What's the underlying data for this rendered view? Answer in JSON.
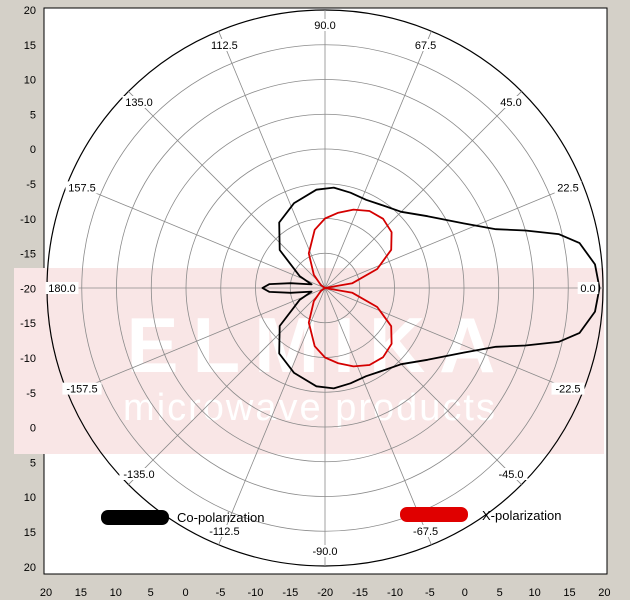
{
  "chart_data": {
    "type": "polar-line",
    "radial_unit": "dB",
    "radial_range": [
      -20,
      20
    ],
    "angle_labels": [
      "0.0",
      "22.5",
      "45.0",
      "67.5",
      "90.0",
      "112.5",
      "135.0",
      "157.5",
      "180.0",
      "-157.5",
      "-135.0",
      "-112.5",
      "-90.0",
      "-67.5",
      "-45.0",
      "-22.5"
    ],
    "x_ticks": [
      "20",
      "15",
      "10",
      "5",
      "0",
      "-5",
      "-10",
      "-15",
      "-20",
      "-15",
      "-10",
      "-5",
      "0",
      "5",
      "10",
      "15",
      "20"
    ],
    "y_ticks": [
      "20",
      "15",
      "10",
      "5",
      "0",
      "-5",
      "-10",
      "-15",
      "-20",
      "-15",
      "-10",
      "-5",
      "0",
      "5",
      "10",
      "15",
      "20"
    ],
    "grid": true,
    "legend_position": "bottom",
    "watermark": {
      "brand": "ELMIKA",
      "tagline": "microwave products"
    },
    "series": [
      {
        "name": "Co-polarization",
        "color": "#000000",
        "points": [
          {
            "angle": 0,
            "r": 19.5
          },
          {
            "angle": 5,
            "r": 19.0
          },
          {
            "angle": 10,
            "r": 17.2
          },
          {
            "angle": 13,
            "r": 14.5
          },
          {
            "angle": 16,
            "r": 10.0
          },
          {
            "angle": 19,
            "r": 6.0
          },
          {
            "angle": 25,
            "r": 2.0
          },
          {
            "angle": 35,
            "r": -2.0
          },
          {
            "angle": 45,
            "r": -4.5
          },
          {
            "angle": 55,
            "r": -5.5
          },
          {
            "angle": 65,
            "r": -6.0
          },
          {
            "angle": 75,
            "r": -5.8
          },
          {
            "angle": 85,
            "r": -5.5
          },
          {
            "angle": 95,
            "r": -5.8
          },
          {
            "angle": 110,
            "r": -7.0
          },
          {
            "angle": 125,
            "r": -8.5
          },
          {
            "angle": 140,
            "r": -11.5
          },
          {
            "angle": 155,
            "r": -16.0
          },
          {
            "angle": 165,
            "r": -18.0
          },
          {
            "angle": 172,
            "r": -15.0
          },
          {
            "angle": 176,
            "r": -12.0
          },
          {
            "angle": 180,
            "r": -11.0
          },
          {
            "angle": 184,
            "r": -12.0
          },
          {
            "angle": 188,
            "r": -15.0
          },
          {
            "angle": 195,
            "r": -18.0
          },
          {
            "angle": 205,
            "r": -16.0
          },
          {
            "angle": 220,
            "r": -11.5
          },
          {
            "angle": 235,
            "r": -8.5
          },
          {
            "angle": 250,
            "r": -7.0
          },
          {
            "angle": 265,
            "r": -5.8
          },
          {
            "angle": 275,
            "r": -5.5
          },
          {
            "angle": 285,
            "r": -5.8
          },
          {
            "angle": 295,
            "r": -6.0
          },
          {
            "angle": 305,
            "r": -5.5
          },
          {
            "angle": 315,
            "r": -4.5
          },
          {
            "angle": 325,
            "r": -2.0
          },
          {
            "angle": 335,
            "r": 2.0
          },
          {
            "angle": 341,
            "r": 6.0
          },
          {
            "angle": 344,
            "r": 10.0
          },
          {
            "angle": 347,
            "r": 14.5
          },
          {
            "angle": 350,
            "r": 17.2
          },
          {
            "angle": 355,
            "r": 19.0
          },
          {
            "angle": 360,
            "r": 19.5
          }
        ]
      },
      {
        "name": "X-polarization",
        "color": "#d40000",
        "points": [
          {
            "angle": 0,
            "r": -20
          },
          {
            "angle": 10,
            "r": -16.0
          },
          {
            "angle": 20,
            "r": -12.0
          },
          {
            "angle": 30,
            "r": -9.0
          },
          {
            "angle": 40,
            "r": -7.5
          },
          {
            "angle": 50,
            "r": -7.0
          },
          {
            "angle": 60,
            "r": -7.2
          },
          {
            "angle": 70,
            "r": -8.0
          },
          {
            "angle": 80,
            "r": -9.0
          },
          {
            "angle": 90,
            "r": -10.0
          },
          {
            "angle": 100,
            "r": -11.5
          },
          {
            "angle": 115,
            "r": -14.5
          },
          {
            "angle": 130,
            "r": -17.5
          },
          {
            "angle": 145,
            "r": -19.3
          },
          {
            "angle": 160,
            "r": -20
          },
          {
            "angle": 180,
            "r": -20
          },
          {
            "angle": 200,
            "r": -20
          },
          {
            "angle": 215,
            "r": -19.3
          },
          {
            "angle": 230,
            "r": -17.5
          },
          {
            "angle": 245,
            "r": -14.5
          },
          {
            "angle": 260,
            "r": -11.5
          },
          {
            "angle": 270,
            "r": -10.0
          },
          {
            "angle": 280,
            "r": -9.0
          },
          {
            "angle": 290,
            "r": -8.0
          },
          {
            "angle": 300,
            "r": -7.2
          },
          {
            "angle": 310,
            "r": -7.0
          },
          {
            "angle": 320,
            "r": -7.5
          },
          {
            "angle": 330,
            "r": -9.0
          },
          {
            "angle": 340,
            "r": -12.0
          },
          {
            "angle": 350,
            "r": -16.0
          },
          {
            "angle": 360,
            "r": -20
          }
        ]
      }
    ]
  }
}
